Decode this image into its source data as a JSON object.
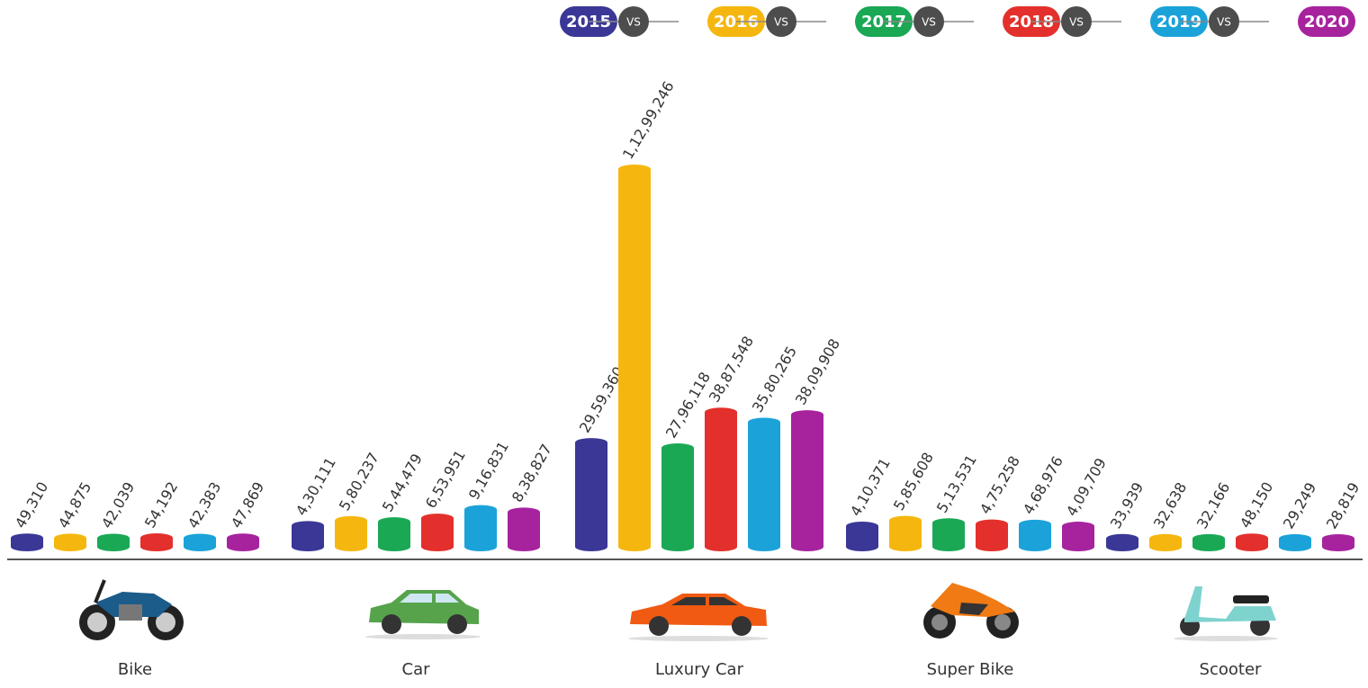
{
  "chart_data": {
    "type": "bar",
    "categories": [
      "Bike",
      "Car",
      "Luxury Car",
      "Super Bike",
      "Scooter"
    ],
    "legend_separator": "VS",
    "series": [
      {
        "name": "2015",
        "color": "#3a3796",
        "values": [
          49310,
          430111,
          2959360,
          410371,
          33939
        ],
        "value_labels": [
          "49,310",
          "4,30,111",
          "29,59,360",
          "4,10,371",
          "33,939"
        ]
      },
      {
        "name": "2016",
        "color": "#f5b70f",
        "values": [
          44875,
          580237,
          11299246,
          585608,
          32638
        ],
        "value_labels": [
          "44,875",
          "5,80,237",
          "1,12,99,246",
          "5,85,608",
          "32,638"
        ]
      },
      {
        "name": "2017",
        "color": "#1aa855",
        "values": [
          42039,
          544479,
          2796118,
          513531,
          32166
        ],
        "value_labels": [
          "42,039",
          "5,44,479",
          "27,96,118",
          "5,13,531",
          "32,166"
        ]
      },
      {
        "name": "2018",
        "color": "#e3302c",
        "values": [
          54192,
          653951,
          3887548,
          475258,
          48150
        ],
        "value_labels": [
          "54,192",
          "6,53,951",
          "38,87,548",
          "4,75,258",
          "48,150"
        ]
      },
      {
        "name": "2019",
        "color": "#1ba3d9",
        "values": [
          42383,
          916831,
          3580265,
          468976,
          29249
        ],
        "value_labels": [
          "42,383",
          "9,16,831",
          "35,80,265",
          "4,68,976",
          "29,249"
        ]
      },
      {
        "name": "2020",
        "color": "#a7239e",
        "values": [
          47869,
          838827,
          3809908,
          409709,
          28819
        ],
        "value_labels": [
          "47,869",
          "8,38,827",
          "38,09,908",
          "4,09,709",
          "28,819"
        ]
      }
    ]
  }
}
